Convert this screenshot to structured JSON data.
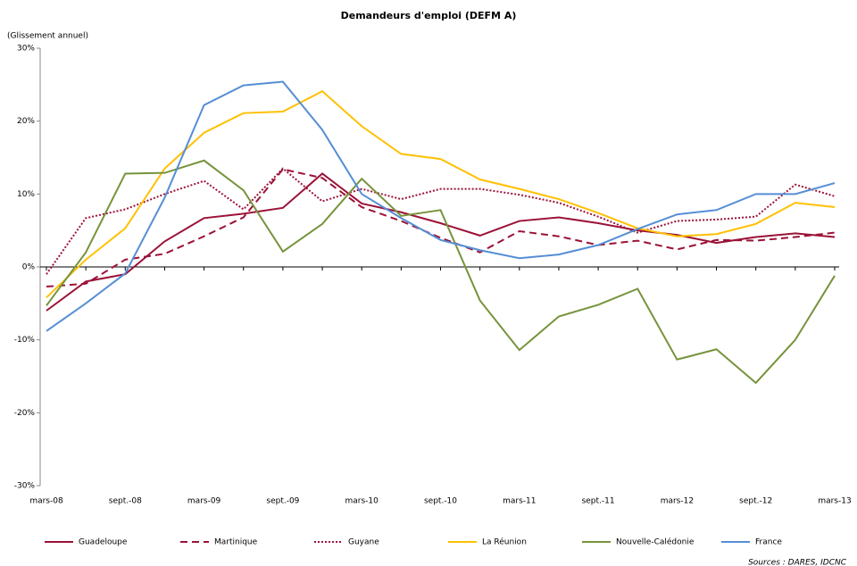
{
  "chart_data": {
    "type": "line",
    "title": "Demandeurs d'emploi (DEFM A)",
    "y_label": "(Glissement annuel)",
    "source": "Sources : DARES, IDCNC",
    "categories": [
      "mars-08",
      null,
      "sept.-08",
      null,
      "mars-09",
      null,
      "sept.-09",
      null,
      "mars-10",
      null,
      "sept.-10",
      null,
      "mars-11",
      null,
      "sept.-11",
      null,
      "mars-12",
      null,
      "sept.-12",
      null,
      "mars-13"
    ],
    "ylim": [
      -30,
      30
    ],
    "yticks": [
      {
        "value": -30,
        "label": "-30%"
      },
      {
        "value": -20,
        "label": "-20%"
      },
      {
        "value": -10,
        "label": "-10%"
      },
      {
        "value": 0,
        "label": "0%"
      },
      {
        "value": 10,
        "label": "10%"
      },
      {
        "value": 20,
        "label": "20%"
      },
      {
        "value": 30,
        "label": "30%"
      }
    ],
    "grid": false,
    "legend": "bottom",
    "series": [
      {
        "name": "Guadeloupe",
        "color": "#9b1237",
        "dash": "solid",
        "values": [
          -6,
          -2,
          -1,
          3.5,
          6.7,
          7.3,
          8.1,
          12.8,
          8.7,
          7.5,
          6,
          4.3,
          6.3,
          6.8,
          6,
          5,
          4.4,
          3.3,
          4.1,
          4.6,
          4.1
        ]
      },
      {
        "name": "Martinique",
        "color": "#9b1237",
        "dash": "dashed",
        "values": [
          -2.7,
          -2.3,
          1,
          1.8,
          4.2,
          6.8,
          13.4,
          12.2,
          8.2,
          6.3,
          4,
          2,
          4.9,
          4.2,
          3,
          3.6,
          2.4,
          3.7,
          3.6,
          4.1,
          4.7
        ]
      },
      {
        "name": "Guyane",
        "color": "#9b1237",
        "dash": "dotted",
        "values": [
          -1,
          6.7,
          7.9,
          10,
          11.8,
          7.9,
          13.5,
          9,
          10.7,
          9.3,
          10.7,
          10.7,
          9.9,
          8.8,
          6.9,
          4.7,
          6.3,
          6.5,
          6.9,
          11.3,
          9.7
        ]
      },
      {
        "name": "La Réunion",
        "color": "#ffc000",
        "dash": "solid",
        "values": [
          -4.2,
          1,
          5.3,
          13.5,
          18.4,
          21.1,
          21.3,
          24.1,
          19.3,
          15.5,
          14.8,
          12,
          10.7,
          9.3,
          7.4,
          5.3,
          4.2,
          4.5,
          5.9,
          8.8,
          8.2
        ]
      },
      {
        "name": "Nouvelle-Calédonie",
        "color": "#77933c",
        "dash": "solid",
        "values": [
          -5.3,
          2,
          12.8,
          12.9,
          14.6,
          10.5,
          2.1,
          5.9,
          12.1,
          7,
          7.8,
          -4.6,
          -11.4,
          -6.8,
          -5.2,
          -3,
          -12.7,
          -11.3,
          -15.9,
          -10,
          -1.2
        ]
      },
      {
        "name": "France",
        "color": "#558ed5",
        "dash": "solid",
        "values": [
          -8.8,
          -5,
          -0.9,
          9.5,
          22.2,
          24.9,
          25.4,
          18.8,
          10,
          6.7,
          3.7,
          2.3,
          1.2,
          1.7,
          3,
          5.2,
          7.2,
          7.8,
          10,
          10,
          11.5
        ]
      }
    ]
  }
}
